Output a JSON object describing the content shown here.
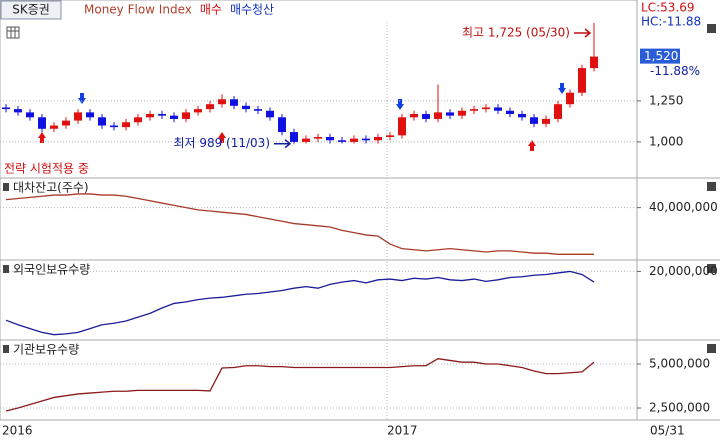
{
  "header": {
    "tab": "SK증권",
    "legend_items": [
      {
        "text": "Money Flow Index",
        "color": "#b0402a"
      },
      {
        "text": "매수",
        "color": "#d01010"
      },
      {
        "text": "매수청산",
        "color": "#1030c0"
      }
    ],
    "right_labels": [
      {
        "text": "LC:53.69",
        "color": "#d01010"
      },
      {
        "text": "HC:-11.88",
        "color": "#1030c0"
      }
    ],
    "strategy_note": "전략 시험적용 중"
  },
  "x_axis": {
    "labels": [
      "2016",
      "2017",
      "05/31"
    ]
  },
  "chart_data": [
    {
      "type": "candlestick",
      "up_color": "#e01010",
      "down_color": "#1010e0",
      "open": [
        1210,
        1200,
        1180,
        1150,
        1080,
        1100,
        1130,
        1180,
        1150,
        1100,
        1090,
        1120,
        1150,
        1170,
        1160,
        1140,
        1180,
        1200,
        1230,
        1260,
        1220,
        1200,
        1190,
        1150,
        1060,
        1000,
        1020,
        1030,
        1010,
        1000,
        1020,
        1010,
        1030,
        1040,
        1150,
        1170,
        1140,
        1180,
        1160,
        1190,
        1200,
        1210,
        1190,
        1170,
        1150,
        1110,
        1140,
        1230,
        1300,
        1450
      ],
      "high": [
        1230,
        1220,
        1200,
        1170,
        1120,
        1150,
        1200,
        1200,
        1170,
        1120,
        1140,
        1170,
        1190,
        1190,
        1180,
        1200,
        1220,
        1250,
        1290,
        1280,
        1240,
        1220,
        1210,
        1170,
        1080,
        1040,
        1050,
        1050,
        1030,
        1040,
        1040,
        1050,
        1060,
        1170,
        1190,
        1190,
        1350,
        1200,
        1210,
        1220,
        1230,
        1230,
        1210,
        1190,
        1170,
        1160,
        1250,
        1320,
        1470,
        1725
      ],
      "low": [
        1180,
        1160,
        1130,
        1060,
        1060,
        1080,
        1110,
        1130,
        1080,
        1070,
        1070,
        1100,
        1130,
        1140,
        1120,
        1120,
        1160,
        1180,
        1210,
        1200,
        1180,
        1170,
        1130,
        1040,
        989,
        990,
        1000,
        990,
        990,
        990,
        990,
        990,
        1010,
        1020,
        1130,
        1120,
        1120,
        1140,
        1140,
        1170,
        1180,
        1170,
        1150,
        1130,
        1090,
        1090,
        1120,
        1210,
        1280,
        1430
      ],
      "close": [
        1200,
        1180,
        1150,
        1080,
        1100,
        1130,
        1180,
        1150,
        1100,
        1090,
        1120,
        1150,
        1170,
        1160,
        1140,
        1180,
        1200,
        1230,
        1260,
        1220,
        1200,
        1190,
        1150,
        1060,
        1000,
        1020,
        1030,
        1010,
        1000,
        1020,
        1010,
        1030,
        1040,
        1150,
        1170,
        1140,
        1180,
        1160,
        1190,
        1200,
        1210,
        1190,
        1170,
        1150,
        1110,
        1140,
        1230,
        1300,
        1450,
        1520
      ],
      "ylim": [
        780,
        1731
      ],
      "yticks": [
        {
          "value": 1000,
          "label": "1,000"
        },
        {
          "value": 1250,
          "label": "1,250"
        }
      ],
      "last_label": "1,520",
      "change_label": "-11.88%",
      "annotations": {
        "high": "최고 1,725 (05/30)",
        "low": "최저 989 (11/03)"
      }
    },
    {
      "type": "line",
      "title": "대차잔고(주수)",
      "color": "#a83a28",
      "values": [
        43500000,
        44000000,
        44500000,
        45000000,
        45500000,
        45500000,
        46000000,
        46000000,
        45500000,
        45500000,
        45000000,
        44000000,
        43000000,
        42000000,
        41000000,
        40000000,
        39000000,
        38500000,
        38000000,
        37500000,
        37000000,
        36000000,
        35000000,
        34000000,
        33000000,
        32500000,
        32000000,
        31500000,
        30000000,
        29000000,
        28000000,
        27500000,
        24000000,
        22000000,
        21500000,
        21000000,
        21500000,
        22000000,
        21500000,
        21000000,
        20500000,
        21000000,
        21000000,
        20500000,
        20000000,
        20000000,
        19500000,
        19500000,
        19500000,
        19500000
      ],
      "ylim": [
        17000000,
        53000000
      ],
      "yticks": [
        {
          "value": 40000000,
          "label": "40,000,000"
        }
      ]
    },
    {
      "type": "line",
      "title": "외국인보유수량",
      "color": "#1c1c98",
      "values": [
        13600000,
        13000000,
        12500000,
        12000000,
        11700000,
        11800000,
        12000000,
        12500000,
        13000000,
        13200000,
        13500000,
        14000000,
        14500000,
        15200000,
        15800000,
        16000000,
        16300000,
        16500000,
        16600000,
        16800000,
        17000000,
        17100000,
        17300000,
        17500000,
        17800000,
        18000000,
        17800000,
        18300000,
        18600000,
        18800000,
        18500000,
        18900000,
        19000000,
        18800000,
        19100000,
        19000000,
        19200000,
        18900000,
        18800000,
        19000000,
        18700000,
        18900000,
        19200000,
        19300000,
        19500000,
        19600000,
        19800000,
        20000000,
        19600000,
        18600000
      ],
      "ylim": [
        11000000,
        21500000
      ],
      "yticks": [
        {
          "value": 20000000,
          "label": "20,000,000"
        }
      ]
    },
    {
      "type": "line",
      "title": "기관보유수량",
      "color": "#8b1a1a",
      "values": [
        2330000,
        2500000,
        2700000,
        2900000,
        3100000,
        3200000,
        3300000,
        3350000,
        3400000,
        3450000,
        3450000,
        3500000,
        3500000,
        3500000,
        3500000,
        3500000,
        3500000,
        3470000,
        4770000,
        4800000,
        4900000,
        4900000,
        4850000,
        4850000,
        4800000,
        4800000,
        4800000,
        4800000,
        4800000,
        4800000,
        4800000,
        4800000,
        4800000,
        4850000,
        4900000,
        4900000,
        5300000,
        5200000,
        5100000,
        5100000,
        5000000,
        5000000,
        4900000,
        4800000,
        4600000,
        4450000,
        4450000,
        4500000,
        4550000,
        5100000
      ],
      "ylim": [
        1820000,
        6360000
      ],
      "yticks": [
        {
          "value": 2500000,
          "label": "2,500,000"
        },
        {
          "value": 5000000,
          "label": "5,000,000"
        }
      ]
    }
  ]
}
